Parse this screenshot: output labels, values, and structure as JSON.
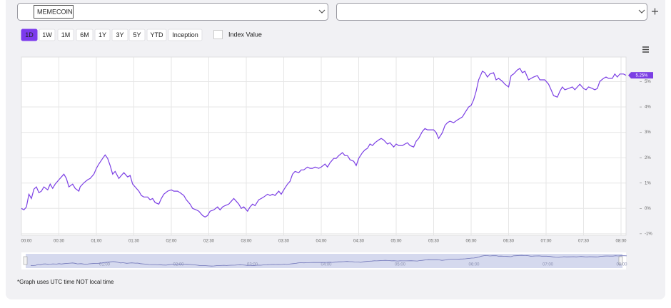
{
  "ui": {
    "selector": "MEMECOIN",
    "ranges": [
      "1D",
      "1W",
      "1M",
      "6M",
      "1Y",
      "3Y",
      "5Y",
      "YTD",
      "Inception"
    ],
    "active_range": 0,
    "index_toggle": "Index Value",
    "note": "*Graph uses UTC time NOT local time"
  },
  "chart_data": {
    "type": "line",
    "series": [
      {
        "name": "MEMECOIN",
        "color": "#7b3fe4",
        "x": [
          0,
          2,
          4,
          6,
          8,
          10,
          12,
          14,
          16,
          18,
          21,
          23,
          25,
          27,
          30,
          32,
          34,
          36,
          38,
          41,
          43,
          46,
          47,
          50,
          53,
          55,
          58,
          60,
          62,
          65,
          67,
          69,
          71,
          73,
          75,
          78,
          80,
          82,
          85,
          87,
          89,
          91,
          94,
          96,
          98,
          101,
          103,
          105,
          107,
          110,
          112,
          114,
          117,
          120,
          122,
          125,
          127,
          130,
          132,
          135,
          137,
          140,
          142,
          145,
          147,
          149,
          151,
          154,
          157,
          159,
          161,
          163,
          166,
          168,
          170,
          172,
          174,
          176,
          178,
          181,
          183,
          185,
          187,
          190,
          192,
          194,
          197,
          199,
          201,
          203,
          206,
          208,
          210,
          213,
          215,
          217,
          219,
          222,
          224,
          226,
          229,
          231,
          233,
          235,
          238,
          240,
          243,
          245,
          247,
          250,
          252,
          254,
          257,
          259,
          261,
          263,
          266,
          268,
          270,
          273,
          275,
          277,
          279,
          281,
          283,
          286,
          288,
          290,
          293,
          295,
          298,
          300,
          302,
          305,
          307,
          309,
          311,
          314,
          316,
          318,
          321,
          323,
          325,
          327,
          330,
          332,
          334,
          337,
          339,
          341,
          343,
          346,
          349,
          351,
          353,
          355,
          358,
          360,
          362,
          364,
          366,
          369,
          371,
          373,
          375,
          378,
          380,
          382,
          385,
          387,
          390,
          392,
          394,
          397,
          399,
          401,
          403,
          406,
          408,
          410,
          413,
          415,
          417,
          419,
          422,
          424,
          426,
          429,
          431,
          433,
          435,
          438,
          441,
          443,
          445,
          447,
          450,
          452,
          454,
          457,
          459,
          461,
          463,
          466,
          468,
          470,
          473,
          475,
          477,
          479,
          482,
          484
        ],
        "values": [
          0,
          -0.06,
          0.06,
          0.56,
          0.39,
          0.76,
          0.85,
          0.62,
          0.68,
          0.85,
          0.73,
          0.96,
          0.79,
          0.96,
          1.13,
          1.24,
          1.35,
          1.18,
          0.85,
          0.96,
          0.79,
          0.68,
          0.85,
          1.01,
          1.13,
          1.18,
          1.35,
          1.58,
          1.75,
          1.97,
          2.11,
          1.97,
          1.69,
          1.35,
          1.46,
          1.18,
          1.3,
          1.41,
          1.24,
          1.3,
          0.96,
          0.85,
          0.68,
          0.51,
          0.45,
          0.45,
          0.34,
          0.39,
          0.23,
          0.17,
          0.39,
          0.56,
          0.68,
          0.73,
          0.68,
          0.68,
          0.62,
          0.51,
          0.34,
          0.17,
          0,
          -0.06,
          -0.11,
          -0.28,
          -0.34,
          -0.28,
          -0.11,
          -0.06,
          0.06,
          -0.06,
          0.06,
          0.11,
          0.17,
          0.28,
          0.39,
          0.28,
          0.17,
          0,
          0.06,
          -0.11,
          0.06,
          0.17,
          0.11,
          0.34,
          0.39,
          0.45,
          0.56,
          0.51,
          0.56,
          0.51,
          0.68,
          0.56,
          0.73,
          0.96,
          1.07,
          1.35,
          1.46,
          1.41,
          1.52,
          1.52,
          1.63,
          1.58,
          1.58,
          1.63,
          1.58,
          1.63,
          1.75,
          1.63,
          1.8,
          1.97,
          1.97,
          2.08,
          2.2,
          2.08,
          2.08,
          1.92,
          1.86,
          1.69,
          1.97,
          2.2,
          2.31,
          2.37,
          2.54,
          2.48,
          2.59,
          2.7,
          2.76,
          2.7,
          2.54,
          2.59,
          2.42,
          2.54,
          2.48,
          2.48,
          2.54,
          2.59,
          2.48,
          2.42,
          2.65,
          2.76,
          3.04,
          3.15,
          3.1,
          3.1,
          3.1,
          2.99,
          2.76,
          2.99,
          3.27,
          3.38,
          3.44,
          3.38,
          3.49,
          3.55,
          3.61,
          3.77,
          4,
          4.06,
          4.28,
          4.62,
          5.07,
          5.41,
          5.35,
          5.18,
          5.3,
          5.35,
          5.07,
          5.13,
          5.01,
          4.9,
          4.79,
          5.24,
          5.3,
          5.46,
          5.52,
          5.35,
          5.41,
          5.07,
          5.13,
          5.18,
          5.24,
          5.07,
          5.07,
          5.07,
          4.9,
          4.68,
          4.45,
          4.39,
          4.62,
          4.79,
          4.68,
          4.73,
          4.79,
          4.68,
          4.79,
          4.9,
          4.73,
          4.68,
          4.79,
          4.73,
          4.68,
          4.73,
          5.01,
          5.13,
          5.18,
          5.13,
          5.13,
          5.3,
          5.18,
          5.3,
          5.3,
          5.25
        ],
        "last_label": "5.25%"
      }
    ],
    "xlim": [
      0,
      484
    ],
    "xticks": [
      {
        "value": 0,
        "label": "00:00"
      },
      {
        "value": 30,
        "label": "00:30"
      },
      {
        "value": 60,
        "label": "01:00"
      },
      {
        "value": 90,
        "label": "01:30"
      },
      {
        "value": 120,
        "label": "02:00"
      },
      {
        "value": 150,
        "label": "02:30"
      },
      {
        "value": 180,
        "label": "03:00"
      },
      {
        "value": 210,
        "label": "03:30"
      },
      {
        "value": 240,
        "label": "04:00"
      },
      {
        "value": 270,
        "label": "04:30"
      },
      {
        "value": 300,
        "label": "05:00"
      },
      {
        "value": 330,
        "label": "05:30"
      },
      {
        "value": 360,
        "label": "06:00"
      },
      {
        "value": 390,
        "label": "06:30"
      },
      {
        "value": 420,
        "label": "07:00"
      },
      {
        "value": 450,
        "label": "07:30"
      },
      {
        "value": 480,
        "label": "08:00"
      }
    ],
    "ylim": [
      -1.06,
      5.97
    ],
    "yticks": [
      {
        "value": -1,
        "label": "-1%"
      },
      {
        "value": 0,
        "label": "0%"
      },
      {
        "value": 1,
        "label": "1%"
      },
      {
        "value": 2,
        "label": "2%"
      },
      {
        "value": 3,
        "label": "3%"
      },
      {
        "value": 4,
        "label": "4%"
      },
      {
        "value": 5,
        "label": "5%"
      }
    ],
    "grid": true
  }
}
